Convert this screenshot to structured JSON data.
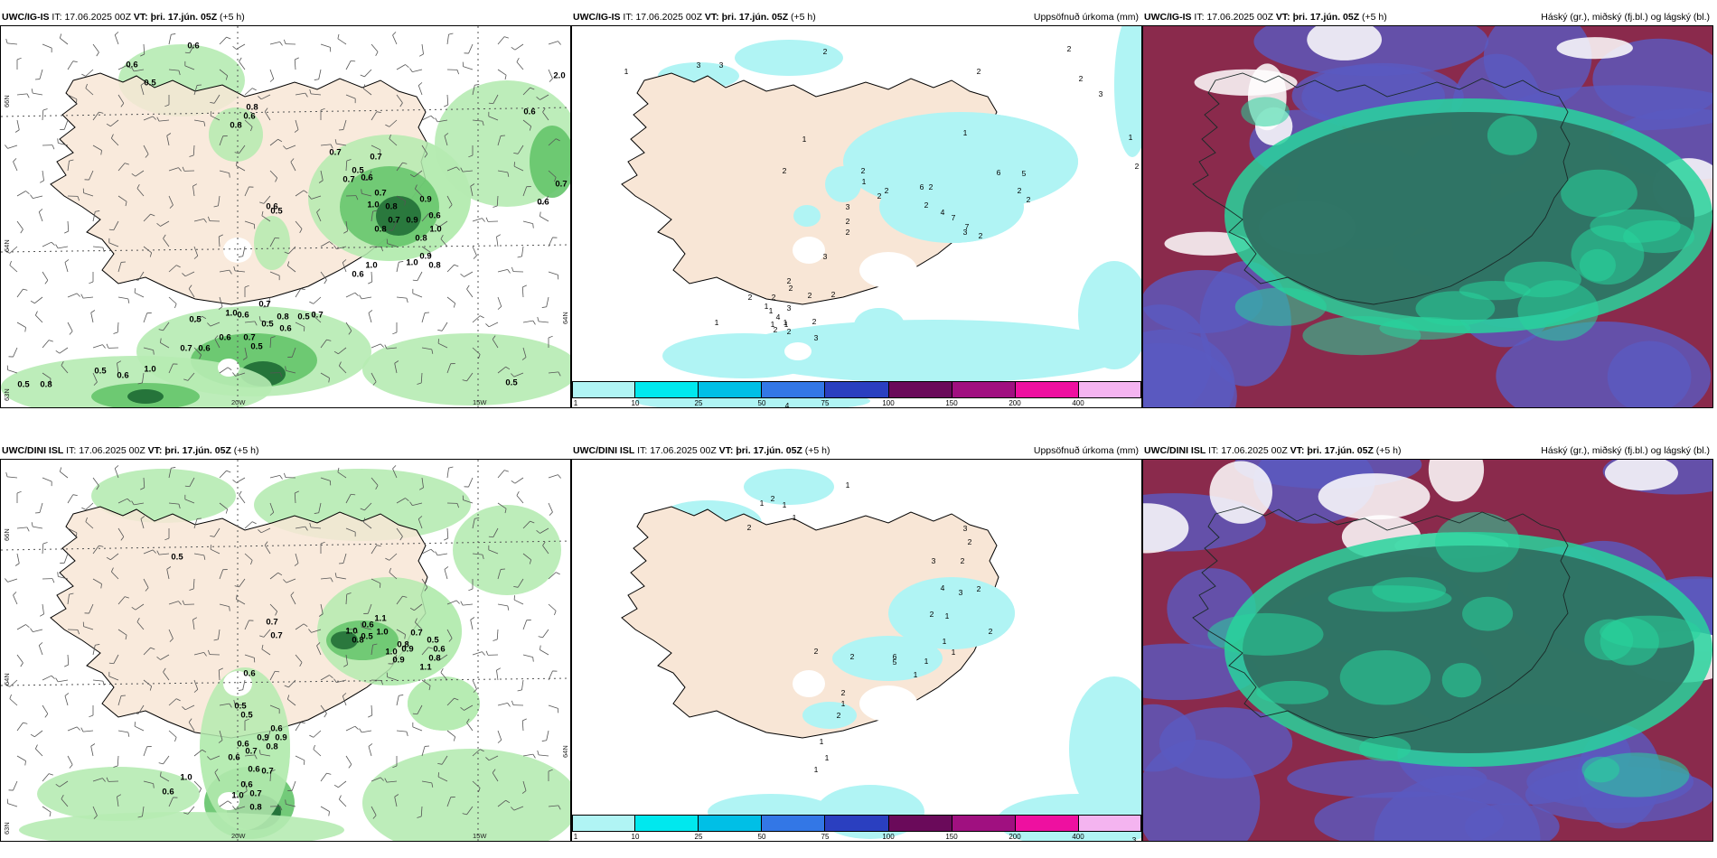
{
  "panels": [
    {
      "id": "tl",
      "model": "UWC/IG-IS",
      "it_label": "IT:",
      "it_value": "17.06.2025 00Z",
      "vt_label": "VT:",
      "vt_value": "þri. 17.jún. 05Z",
      "lead": "(+5 h)",
      "right_title": "",
      "axis_labels": [
        "66N",
        "64N",
        "20W",
        "15W",
        "64N",
        "63N"
      ],
      "values": [
        "0.6",
        "0.6",
        "0.5",
        "0.8",
        "0.6",
        "0.8",
        "0.7",
        "0.7",
        "0.5",
        "0.7",
        "0.6",
        "0.7",
        "1.0",
        "0.8",
        "0.9",
        "0.6",
        "0.7",
        "0.8",
        "0.9",
        "0.8",
        "1.0",
        "0.9",
        "1.0",
        "0.6",
        "1.0",
        "0.8",
        "0.5",
        "0.6",
        "0.7",
        "0.6",
        "0.5",
        "0.5",
        "0.8",
        "0.7",
        "0.6",
        "0.7",
        "0.6",
        "0.5",
        "1.0",
        "0.7",
        "0.5",
        "0.6",
        "1.0",
        "0.5",
        "0.6",
        "0.5",
        "0.5",
        "0.8",
        "0.6",
        "0.7",
        "0.6",
        "2.0"
      ]
    },
    {
      "id": "tm",
      "model": "UWC/IG-IS",
      "it_label": "IT:",
      "it_value": "17.06.2025 00Z",
      "vt_label": "VT:",
      "vt_value": "þri. 17.jún. 05Z",
      "lead": "(+5 h)",
      "right_title": "Uppsöfnuð úrkoma (mm)",
      "values": [
        "2",
        "2",
        "3",
        "3",
        "1",
        "2",
        "2",
        "3",
        "1",
        "2",
        "1",
        "1",
        "2",
        "2",
        "1",
        "2",
        "2",
        "2",
        "6",
        "6",
        "5",
        "2",
        "2",
        "2",
        "4",
        "7",
        "7",
        "3",
        "2",
        "3",
        "2",
        "2",
        "3",
        "2",
        "2",
        "2",
        "2",
        "1",
        "1",
        "3",
        "4",
        "1",
        "2",
        "2",
        "2",
        "3",
        "1",
        "2",
        "1",
        "2",
        "1",
        "4"
      ]
    },
    {
      "id": "tr",
      "model": "UWC/IG-IS",
      "it_label": "IT:",
      "it_value": "17.06.2025 00Z",
      "vt_label": "VT:",
      "vt_value": "þri. 17.jún. 05Z",
      "lead": "(+5 h)",
      "right_title": "Háský (gr.), miðský (fj.bl.) og lágský (bl.)"
    },
    {
      "id": "bl",
      "model": "UWC/DINI ISL",
      "it_label": "IT:",
      "it_value": "17.06.2025 00Z",
      "vt_label": "VT:",
      "vt_value": "þri. 17.jún. 05Z",
      "lead": "(+5 h)",
      "right_title": "",
      "axis_labels": [
        "66N",
        "64N",
        "20W",
        "15W",
        "64N",
        "63N"
      ],
      "values": [
        "0.5",
        "0.7",
        "0.7",
        "1.0",
        "0.6",
        "1.0",
        "1.1",
        "0.5",
        "0.8",
        "0.8",
        "1.0",
        "0.7",
        "0.5",
        "0.9",
        "0.9",
        "0.8",
        "0.6",
        "1.1",
        "0.6",
        "0.5",
        "0.5",
        "0.6",
        "0.9",
        "0.9",
        "0.8",
        "0.6",
        "0.6",
        "0.7",
        "0.6",
        "0.7",
        "0.6",
        "0.7",
        "1.0",
        "0.8",
        "1.0",
        "0.6"
      ]
    },
    {
      "id": "bm",
      "model": "UWC/DINI ISL",
      "it_label": "IT:",
      "it_value": "17.06.2025 00Z",
      "vt_label": "VT:",
      "vt_value": "þri. 17.jún. 05Z",
      "lead": "(+5 h)",
      "right_title": "Uppsöfnuð úrkoma (mm)",
      "values": [
        "1",
        "2",
        "1",
        "1",
        "2",
        "1",
        "3",
        "2",
        "3",
        "2",
        "4",
        "3",
        "2",
        "2",
        "1",
        "2",
        "6",
        "5",
        "2",
        "1",
        "1",
        "1",
        "1",
        "2",
        "1",
        "2",
        "2",
        "1",
        "1",
        "1",
        "3"
      ]
    },
    {
      "id": "br",
      "model": "UWC/DINI ISL",
      "it_label": "IT:",
      "it_value": "17.06.2025 00Z",
      "vt_label": "VT:",
      "vt_value": "þri. 17.jún. 05Z",
      "lead": "(+5 h)",
      "right_title": "Háský (gr.), miðský (fj.bl.) og lágský (bl.)"
    }
  ],
  "precip_colorbar": {
    "ticks": [
      "1",
      "10",
      "25",
      "50",
      "75",
      "100",
      "150",
      "200",
      "400"
    ],
    "colors": [
      "#b0f4f4",
      "#00e8ee",
      "#00bfe6",
      "#3377e6",
      "#2a3fc0",
      "#6a0a5a",
      "#a01080",
      "#ee10a0",
      "#f4b4f0"
    ]
  },
  "colors": {
    "land": "#f8e6d6",
    "wind_green_light": "#b6ebb2",
    "wind_green_mid": "#64c46a",
    "wind_green_dark": "#1d6a34",
    "precip_light": "#b0f4f4",
    "cloud_high": "#2f7062",
    "cloud_teal": "#28d49c",
    "cloud_mid": "#8a2a4c",
    "cloud_low": "#5a5ac0"
  }
}
